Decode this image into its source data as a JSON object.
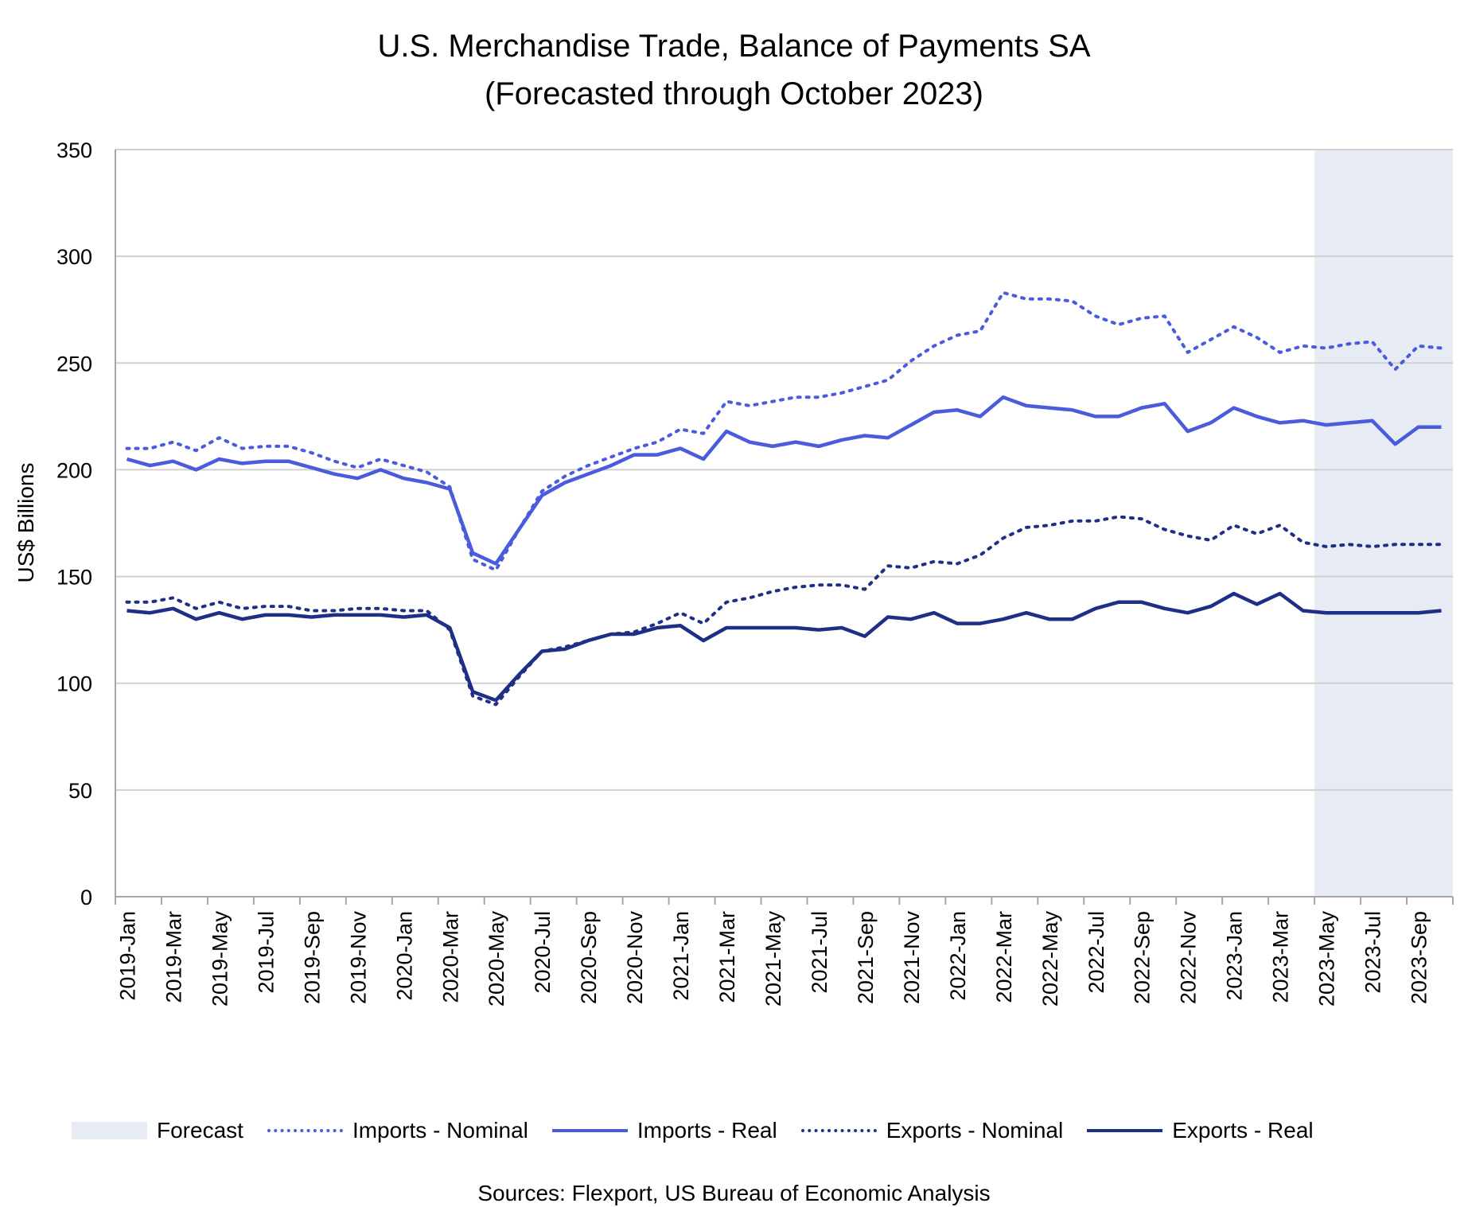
{
  "title_line1": "U.S. Merchandise Trade, Balance of Payments SA",
  "title_line2": "(Forecasted through October 2023)",
  "source": "Sources: Flexport, US Bureau of Economic Analysis",
  "colors": {
    "imports": "#4a5bdc",
    "exports": "#1f2f86",
    "forecast_fill": "#e7ebf3",
    "grid": "#d0d0d0",
    "axis": "#a6a6a6"
  },
  "legend": [
    {
      "label": "Forecast",
      "style": "area"
    },
    {
      "label": "Imports - Nominal",
      "style": "dotted",
      "color": "#4a5bdc"
    },
    {
      "label": "Imports - Real",
      "style": "solid",
      "color": "#4a5bdc"
    },
    {
      "label": "Exports - Nominal",
      "style": "dotted",
      "color": "#1f2f86"
    },
    {
      "label": "Exports - Real",
      "style": "solid",
      "color": "#1f2f86"
    }
  ],
  "chart_data": {
    "type": "line",
    "title": "U.S. Merchandise Trade, Balance of Payments SA (Forecasted through October 2023)",
    "xlabel": "",
    "ylabel": "US$ Billions",
    "ylim": [
      0,
      350
    ],
    "yticks": [
      0,
      50,
      100,
      150,
      200,
      250,
      300,
      350
    ],
    "grid": true,
    "legend_position": "bottom",
    "forecast_range": [
      "2023-May",
      "2023-Oct"
    ],
    "x_tick_labels": [
      "2019-Jan",
      "2019-Mar",
      "2019-May",
      "2019-Jul",
      "2019-Sep",
      "2019-Nov",
      "2020-Jan",
      "2020-Mar",
      "2020-May",
      "2020-Jul",
      "2020-Sep",
      "2020-Nov",
      "2021-Jan",
      "2021-Mar",
      "2021-May",
      "2021-Jul",
      "2021-Sep",
      "2021-Nov",
      "2022-Jan",
      "2022-Mar",
      "2022-May",
      "2022-Jul",
      "2022-Sep",
      "2022-Nov",
      "2023-Jan",
      "2023-Mar",
      "2023-May",
      "2023-Jul",
      "2023-Sep"
    ],
    "x": [
      "2019-Jan",
      "2019-Feb",
      "2019-Mar",
      "2019-Apr",
      "2019-May",
      "2019-Jun",
      "2019-Jul",
      "2019-Aug",
      "2019-Sep",
      "2019-Oct",
      "2019-Nov",
      "2019-Dec",
      "2020-Jan",
      "2020-Feb",
      "2020-Mar",
      "2020-Apr",
      "2020-May",
      "2020-Jun",
      "2020-Jul",
      "2020-Aug",
      "2020-Sep",
      "2020-Oct",
      "2020-Nov",
      "2020-Dec",
      "2021-Jan",
      "2021-Feb",
      "2021-Mar",
      "2021-Apr",
      "2021-May",
      "2021-Jun",
      "2021-Jul",
      "2021-Aug",
      "2021-Sep",
      "2021-Oct",
      "2021-Nov",
      "2021-Dec",
      "2022-Jan",
      "2022-Feb",
      "2022-Mar",
      "2022-Apr",
      "2022-May",
      "2022-Jun",
      "2022-Jul",
      "2022-Aug",
      "2022-Sep",
      "2022-Oct",
      "2022-Nov",
      "2022-Dec",
      "2023-Jan",
      "2023-Feb",
      "2023-Mar",
      "2023-Apr",
      "2023-May",
      "2023-Jun",
      "2023-Jul",
      "2023-Aug",
      "2023-Sep",
      "2023-Oct"
    ],
    "series": [
      {
        "name": "Imports - Nominal",
        "style": "dotted",
        "color": "#4a5bdc",
        "values": [
          210,
          210,
          213,
          209,
          215,
          210,
          211,
          211,
          208,
          204,
          201,
          205,
          202,
          199,
          192,
          158,
          153,
          172,
          190,
          197,
          202,
          206,
          210,
          213,
          219,
          217,
          232,
          230,
          232,
          234,
          234,
          236,
          239,
          242,
          251,
          258,
          263,
          265,
          283,
          280,
          280,
          279,
          272,
          268,
          271,
          272,
          255,
          261,
          267,
          262,
          255,
          258,
          257,
          259,
          260,
          247,
          258,
          257
        ]
      },
      {
        "name": "Imports - Real",
        "style": "solid",
        "color": "#4a5bdc",
        "values": [
          205,
          202,
          204,
          200,
          205,
          203,
          204,
          204,
          201,
          198,
          196,
          200,
          196,
          194,
          191,
          161,
          156,
          172,
          188,
          194,
          198,
          202,
          207,
          207,
          210,
          205,
          218,
          213,
          211,
          213,
          211,
          214,
          216,
          215,
          221,
          227,
          228,
          225,
          234,
          230,
          229,
          228,
          225,
          225,
          229,
          231,
          218,
          222,
          229,
          225,
          222,
          223,
          221,
          222,
          223,
          212,
          220,
          220
        ]
      },
      {
        "name": "Exports - Nominal",
        "style": "dotted",
        "color": "#1f2f86",
        "values": [
          138,
          138,
          140,
          135,
          138,
          135,
          136,
          136,
          134,
          134,
          135,
          135,
          134,
          134,
          125,
          94,
          90,
          103,
          115,
          117,
          120,
          123,
          124,
          128,
          133,
          128,
          138,
          140,
          143,
          145,
          146,
          146,
          144,
          155,
          154,
          157,
          156,
          160,
          168,
          173,
          174,
          176,
          176,
          178,
          177,
          172,
          169,
          167,
          174,
          170,
          174,
          166,
          164,
          165,
          164,
          165,
          165,
          165
        ]
      },
      {
        "name": "Exports - Real",
        "style": "solid",
        "color": "#1f2f86",
        "values": [
          134,
          133,
          135,
          130,
          133,
          130,
          132,
          132,
          131,
          132,
          132,
          132,
          131,
          132,
          126,
          96,
          92,
          104,
          115,
          116,
          120,
          123,
          123,
          126,
          127,
          120,
          126,
          126,
          126,
          126,
          125,
          126,
          122,
          131,
          130,
          133,
          128,
          128,
          130,
          133,
          130,
          130,
          135,
          138,
          138,
          135,
          133,
          136,
          142,
          137,
          142,
          134,
          133,
          133,
          133,
          133,
          133,
          134
        ]
      }
    ]
  }
}
